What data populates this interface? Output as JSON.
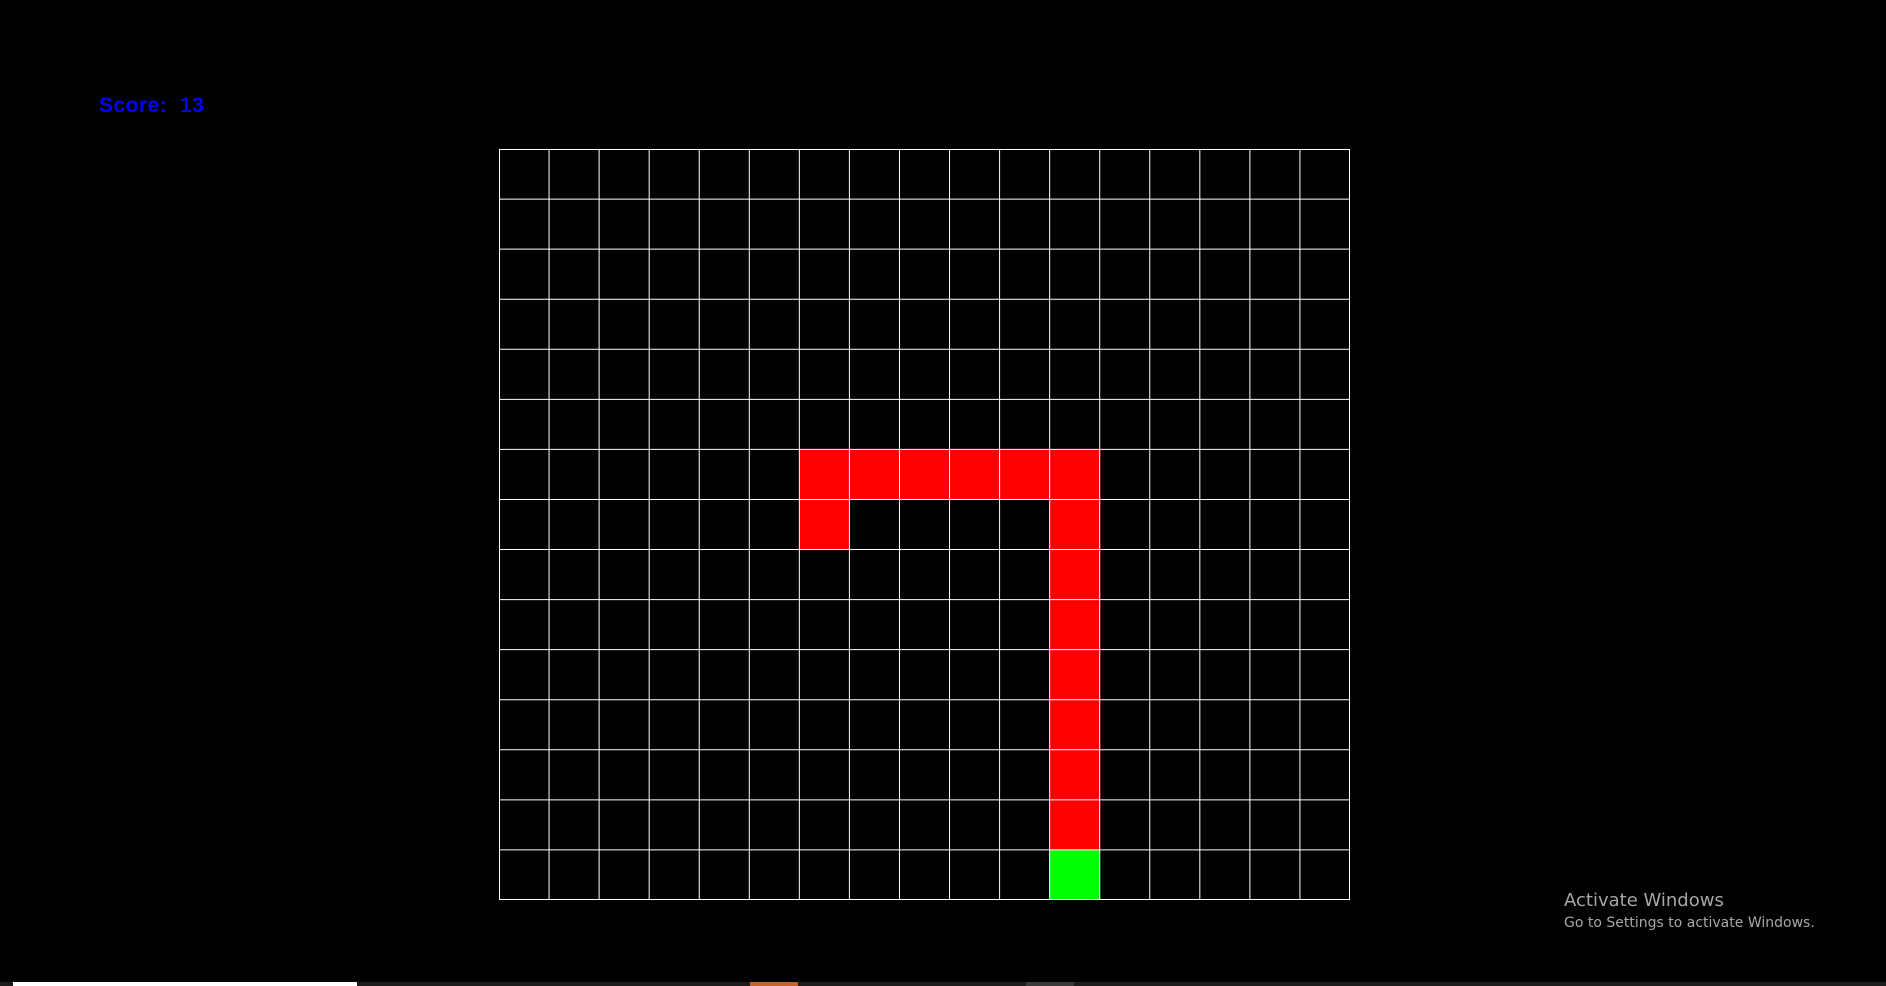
{
  "game": {
    "score_label": "Score:",
    "score_value": "13",
    "grid": {
      "columns": 17,
      "rows": 15,
      "line_color": "#ffffff",
      "background": "#000000"
    },
    "snake": {
      "color": "#ff0000",
      "cells": [
        [
          6,
          7
        ],
        [
          6,
          6
        ],
        [
          7,
          6
        ],
        [
          8,
          6
        ],
        [
          9,
          6
        ],
        [
          10,
          6
        ],
        [
          11,
          6
        ],
        [
          11,
          7
        ],
        [
          11,
          8
        ],
        [
          11,
          9
        ],
        [
          11,
          10
        ],
        [
          11,
          11
        ],
        [
          11,
          12
        ],
        [
          11,
          13
        ]
      ]
    },
    "food": {
      "color": "#00ff00",
      "cell": [
        11,
        14
      ]
    },
    "score_color": "#0000ff"
  },
  "watermark": {
    "title": "Activate Windows",
    "subtitle": "Go to Settings to activate Windows."
  },
  "taskbar": {
    "segments": [
      {
        "color": "#ffffff"
      },
      {
        "color": "#1c1c1c"
      },
      {
        "color": "#c0652c"
      },
      {
        "color": "#1c1c1c"
      },
      {
        "color": "#3a3a3a"
      }
    ]
  }
}
